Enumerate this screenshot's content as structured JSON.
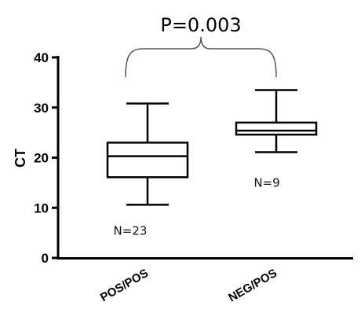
{
  "chart_data": {
    "type": "box",
    "ylabel": "CT",
    "ylim": [
      0,
      40
    ],
    "yticks": [
      0,
      10,
      20,
      30,
      40
    ],
    "categories": [
      "POS/POS",
      "NEG/POS"
    ],
    "boxes": [
      {
        "category": "POS/POS",
        "min": 10.6,
        "q1": 16.1,
        "median": 20.3,
        "q3": 23.0,
        "max": 30.8,
        "n_label": "N=23"
      },
      {
        "category": "NEG/POS",
        "min": 21.1,
        "q1": 24.6,
        "median": 25.4,
        "q3": 27.0,
        "max": 33.5,
        "n_label": "N=9"
      }
    ],
    "annotation": {
      "text": "P=0.003",
      "between": [
        "POS/POS",
        "NEG/POS"
      ]
    }
  }
}
